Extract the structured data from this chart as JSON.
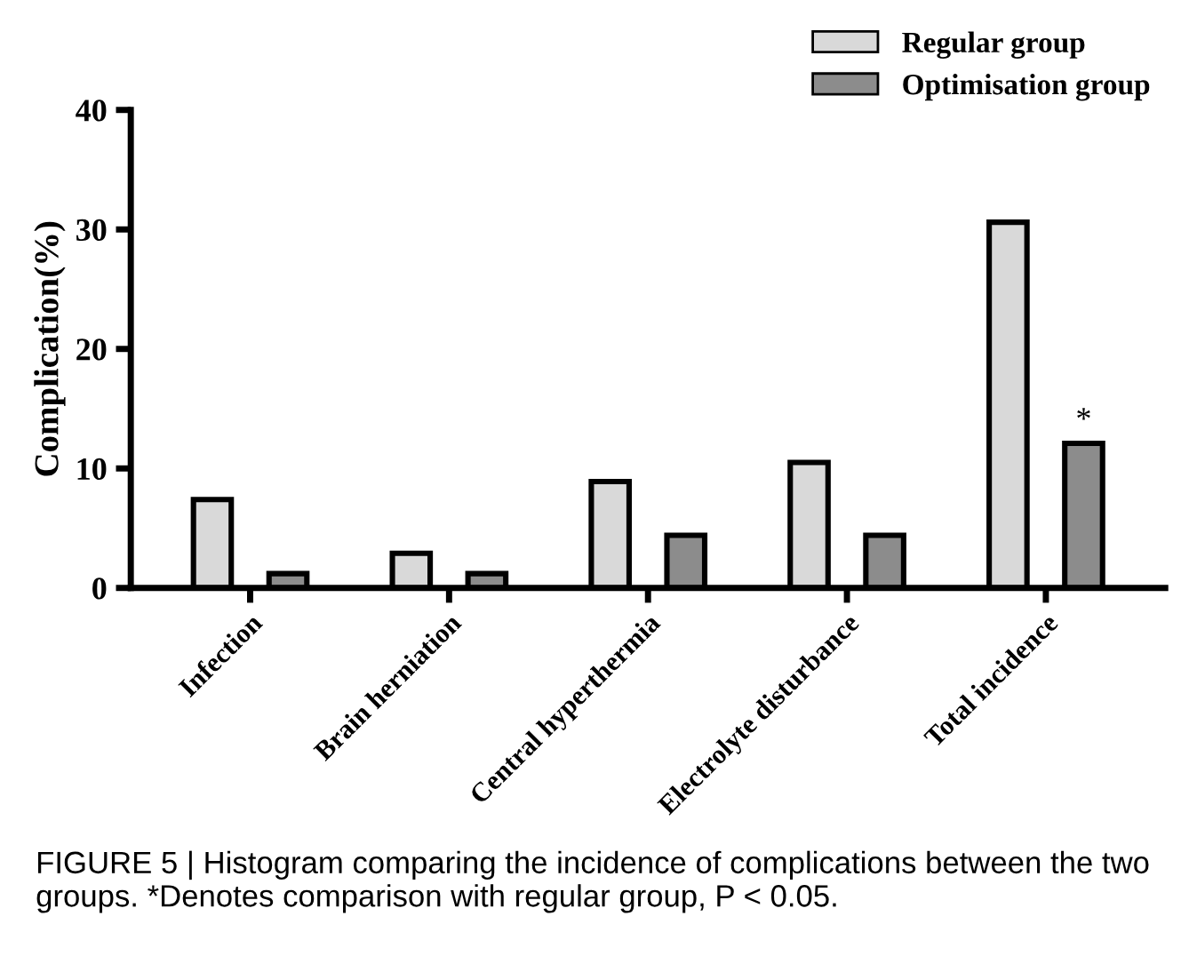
{
  "chart_data": {
    "type": "bar",
    "ylabel": "Complication(%)",
    "categories": [
      "Infection",
      "Brain herniation",
      "Central hyperthermia",
      "Electrolyte disturbance",
      "Total incidence"
    ],
    "series": [
      {
        "name": "Regular group",
        "color": "#d9d9d9",
        "values": [
          7.4,
          2.9,
          8.9,
          10.5,
          30.6
        ]
      },
      {
        "name": "Optimisation group",
        "color": "#8c8c8c",
        "values": [
          1.2,
          1.2,
          4.4,
          4.4,
          12.1
        ]
      }
    ],
    "ylim": [
      0,
      40
    ],
    "yticks": [
      0,
      10,
      20,
      30,
      40
    ],
    "grid": false,
    "legend": "top right",
    "annotations": [
      "*",
      "FIGURE 5 | Histogram comparing the incidence of complications between the two groups. *Denotes comparison with regular group, P < 0.05."
    ]
  }
}
